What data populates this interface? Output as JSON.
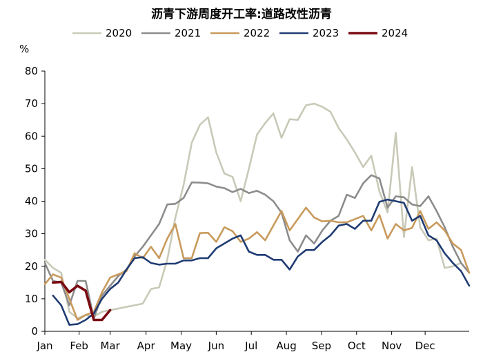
{
  "chart_data": {
    "type": "line",
    "title": "沥青下游周度开工率:道路改性沥青",
    "ylabel": "%",
    "xlabel": "",
    "ylim": [
      0,
      80
    ],
    "yticks": [
      0,
      10,
      20,
      30,
      40,
      50,
      60,
      70,
      80
    ],
    "xlim": [
      1,
      53
    ],
    "x_unit": "week of year",
    "xtick_labels": [
      "Jan",
      "Feb",
      "Mar",
      "Apr",
      "May",
      "Jun",
      "Jul",
      "Aug",
      "Sep",
      "Oct",
      "Nov",
      "Dec"
    ],
    "xtick_weeks": [
      1,
      5.2,
      9,
      13.4,
      17.7,
      22,
      26.3,
      30.6,
      34.9,
      39.2,
      43.5,
      47.6
    ],
    "grid": false,
    "legend_position": "top",
    "series": [
      {
        "name": "2020",
        "color": "#c9c9b8",
        "points": [
          [
            1,
            22
          ],
          [
            2,
            19.5
          ],
          [
            3,
            18
          ],
          [
            4,
            6
          ],
          [
            5,
            4
          ],
          [
            6,
            5
          ],
          [
            7,
            4.5
          ],
          [
            8,
            6
          ],
          [
            13,
            8.5
          ],
          [
            14,
            13
          ],
          [
            15,
            13.5
          ],
          [
            16,
            22
          ],
          [
            17,
            35
          ],
          [
            18,
            45
          ],
          [
            19,
            58
          ],
          [
            20,
            63.5
          ],
          [
            21,
            65.8
          ],
          [
            22,
            55
          ],
          [
            23,
            48.5
          ],
          [
            24,
            47.5
          ],
          [
            25,
            40
          ],
          [
            26,
            50
          ],
          [
            27,
            60.5
          ],
          [
            28,
            64
          ],
          [
            29,
            67
          ],
          [
            30,
            59.5
          ],
          [
            31,
            65.2
          ],
          [
            32,
            65
          ],
          [
            33,
            69.5
          ],
          [
            34,
            70
          ],
          [
            35,
            69
          ],
          [
            36,
            67.5
          ],
          [
            37,
            62.5
          ],
          [
            38,
            59
          ],
          [
            39,
            55
          ],
          [
            40,
            50.5
          ],
          [
            41,
            54
          ],
          [
            42,
            43
          ],
          [
            43,
            36.5
          ],
          [
            44,
            61
          ],
          [
            45,
            29
          ],
          [
            46,
            50.5
          ],
          [
            47,
            32
          ],
          [
            48,
            28
          ],
          [
            49,
            28.5
          ],
          [
            50,
            19.5
          ],
          [
            51,
            20
          ],
          [
            52,
            21
          ],
          [
            53,
            18
          ]
        ]
      },
      {
        "name": "2021",
        "color": "#8c8c8c",
        "points": [
          [
            1,
            21
          ],
          [
            2,
            15.5
          ],
          [
            3,
            15
          ],
          [
            4,
            8
          ],
          [
            5,
            15.5
          ],
          [
            6,
            15.5
          ],
          [
            7,
            4
          ],
          [
            8,
            11
          ],
          [
            9,
            14
          ],
          [
            10,
            17
          ],
          [
            11,
            19
          ],
          [
            12,
            23
          ],
          [
            13,
            26
          ],
          [
            14,
            29.5
          ],
          [
            15,
            33
          ],
          [
            16,
            39
          ],
          [
            17,
            39.2
          ],
          [
            18,
            41
          ],
          [
            19,
            45.8
          ],
          [
            20,
            45.7
          ],
          [
            21,
            45.5
          ],
          [
            22,
            44.5
          ],
          [
            23,
            44
          ],
          [
            24,
            42.8
          ],
          [
            25,
            43.8
          ],
          [
            26,
            42.5
          ],
          [
            27,
            43.2
          ],
          [
            28,
            42
          ],
          [
            29,
            40
          ],
          [
            30,
            36.5
          ],
          [
            31,
            28
          ],
          [
            32,
            24.5
          ],
          [
            33,
            29.5
          ],
          [
            34,
            27
          ],
          [
            35,
            31
          ],
          [
            36,
            34
          ],
          [
            37,
            35.5
          ],
          [
            38,
            42
          ],
          [
            39,
            41
          ],
          [
            40,
            45.5
          ],
          [
            41,
            48
          ],
          [
            42,
            47
          ],
          [
            43,
            38
          ],
          [
            44,
            41.5
          ],
          [
            45,
            41.2
          ],
          [
            46,
            39
          ],
          [
            47,
            38.5
          ],
          [
            48,
            41.5
          ],
          [
            49,
            37
          ],
          [
            50,
            32
          ],
          [
            51,
            26
          ],
          [
            52,
            21
          ],
          [
            53,
            18
          ]
        ]
      },
      {
        "name": "2022",
        "color": "#c89a5c",
        "points": [
          [
            1,
            14.5
          ],
          [
            2,
            17.5
          ],
          [
            3,
            16.5
          ],
          [
            4,
            10
          ],
          [
            5,
            3.5
          ],
          [
            6,
            5
          ],
          [
            7,
            6
          ],
          [
            8,
            12
          ],
          [
            9,
            16.5
          ],
          [
            10,
            17.5
          ],
          [
            11,
            18.5
          ],
          [
            12,
            24
          ],
          [
            13,
            22.5
          ],
          [
            14,
            26
          ],
          [
            15,
            22.5
          ],
          [
            16,
            28.5
          ],
          [
            17,
            33
          ],
          [
            18,
            22.5
          ],
          [
            19,
            22.5
          ],
          [
            20,
            30.2
          ],
          [
            21,
            30.3
          ],
          [
            22,
            27.5
          ],
          [
            23,
            32
          ],
          [
            24,
            30.8
          ],
          [
            25,
            27.5
          ],
          [
            26,
            28.5
          ],
          [
            27,
            30.5
          ],
          [
            28,
            28
          ],
          [
            29,
            32.5
          ],
          [
            30,
            37
          ],
          [
            31,
            31
          ],
          [
            32,
            34.5
          ],
          [
            33,
            38
          ],
          [
            34,
            35
          ],
          [
            35,
            33.8
          ],
          [
            36,
            34
          ],
          [
            37,
            33.5
          ],
          [
            38,
            33.5
          ],
          [
            39,
            34.5
          ],
          [
            40,
            35.5
          ],
          [
            41,
            31
          ],
          [
            42,
            35.8
          ],
          [
            43,
            28.5
          ],
          [
            44,
            33
          ],
          [
            45,
            31
          ],
          [
            46,
            31.8
          ],
          [
            47,
            37
          ],
          [
            48,
            31.5
          ],
          [
            49,
            33.5
          ],
          [
            50,
            31
          ],
          [
            51,
            27
          ],
          [
            52,
            25
          ],
          [
            53,
            18
          ]
        ]
      },
      {
        "name": "2023",
        "color": "#1f3b73",
        "points": [
          [
            2,
            11
          ],
          [
            3,
            8
          ],
          [
            4,
            2
          ],
          [
            5,
            2.2
          ],
          [
            6,
            3.5
          ],
          [
            7,
            5.5
          ],
          [
            8,
            10
          ],
          [
            9,
            13
          ],
          [
            10,
            15
          ],
          [
            11,
            19
          ],
          [
            12,
            22.5
          ],
          [
            13,
            22.8
          ],
          [
            14,
            21
          ],
          [
            15,
            20.5
          ],
          [
            16,
            20.8
          ],
          [
            17,
            20.8
          ],
          [
            18,
            21.8
          ],
          [
            19,
            21.8
          ],
          [
            20,
            22.5
          ],
          [
            21,
            22.5
          ],
          [
            22,
            25.5
          ],
          [
            23,
            27
          ],
          [
            24,
            28.5
          ],
          [
            25,
            29.5
          ],
          [
            26,
            24.5
          ],
          [
            27,
            23.5
          ],
          [
            28,
            23.5
          ],
          [
            29,
            22
          ],
          [
            30,
            22
          ],
          [
            31,
            19
          ],
          [
            32,
            23
          ],
          [
            33,
            25
          ],
          [
            34,
            25
          ],
          [
            35,
            27.5
          ],
          [
            36,
            29.5
          ],
          [
            37,
            32.5
          ],
          [
            38,
            33
          ],
          [
            39,
            31.5
          ],
          [
            40,
            34
          ],
          [
            41,
            34
          ],
          [
            42,
            39.8
          ],
          [
            43,
            40.5
          ],
          [
            44,
            40
          ],
          [
            45,
            39.5
          ],
          [
            46,
            34
          ],
          [
            47,
            35.5
          ],
          [
            48,
            29.5
          ],
          [
            49,
            28
          ],
          [
            50,
            24
          ],
          [
            51,
            21
          ],
          [
            52,
            18.5
          ],
          [
            53,
            14
          ]
        ]
      },
      {
        "name": "2024",
        "color": "#7a0a12",
        "points": [
          [
            2,
            15
          ],
          [
            3,
            15.2
          ],
          [
            4,
            12
          ],
          [
            5,
            14
          ],
          [
            6,
            12.5
          ],
          [
            7,
            3.5
          ],
          [
            8,
            3.5
          ],
          [
            9,
            6.5
          ]
        ]
      }
    ]
  }
}
